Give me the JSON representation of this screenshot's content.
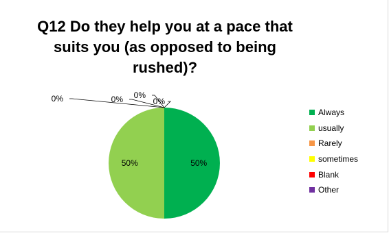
{
  "chart_data": {
    "type": "pie",
    "title_lines": [
      "Q12 Do they help you at a pace that",
      "suits you (as opposed to being",
      "rushed)?"
    ],
    "slices": [
      {
        "name": "Always",
        "value": 50,
        "label": "50%",
        "color": "#00b050"
      },
      {
        "name": "usually",
        "value": 50,
        "label": "50%",
        "color": "#92d050"
      },
      {
        "name": "Rarely",
        "value": 0,
        "label": "0%",
        "color": "#f79646"
      },
      {
        "name": "sometimes",
        "value": 0,
        "label": "0%",
        "color": "#ffff00"
      },
      {
        "name": "Blank",
        "value": 0,
        "label": "0%",
        "color": "#ff0000"
      },
      {
        "name": "Other",
        "value": 0,
        "label": "0%",
        "color": "#7030a0"
      }
    ],
    "legend_position": "right"
  }
}
